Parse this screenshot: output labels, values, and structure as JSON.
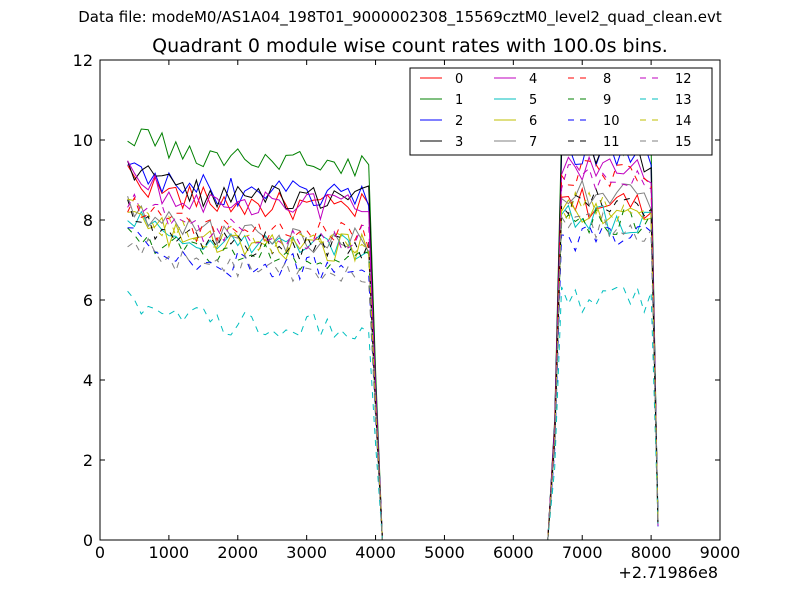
{
  "suptitle": "Data file: modeM0/AS1A04_198T01_9000002308_15569cztM0_level2_quad_clean.evt",
  "chart_data": {
    "type": "line",
    "title": "Quadrant 0 module wise count rates with 100.0s bins.",
    "xlabel": "",
    "ylabel": "",
    "x_offset_label": "+2.71986e8",
    "xlim": [
      0,
      9000
    ],
    "ylim": [
      0,
      12
    ],
    "xticks": [
      0,
      1000,
      2000,
      3000,
      4000,
      5000,
      6000,
      7000,
      8000,
      9000
    ],
    "yticks": [
      0,
      2,
      4,
      6,
      8,
      10,
      12
    ],
    "grid": false,
    "legend_position": "top-right",
    "legend_columns": 4,
    "x_segments": [
      [
        400,
        3900
      ],
      [
        4000,
        4300
      ],
      [
        4400,
        6500
      ],
      [
        6600,
        8100
      ]
    ],
    "x_step": 100,
    "series": [
      {
        "name": "0",
        "color": "#ff0000",
        "dash": "solid",
        "level1": 8.3,
        "level2": 8.4
      },
      {
        "name": "1",
        "color": "#008000",
        "dash": "solid",
        "level1": 9.4,
        "level2": 10.0
      },
      {
        "name": "2",
        "color": "#0000ff",
        "dash": "solid",
        "level1": 8.6,
        "level2": 9.7
      },
      {
        "name": "3",
        "color": "#000000",
        "dash": "solid",
        "level1": 8.5,
        "level2": 9.6
      },
      {
        "name": "4",
        "color": "#bf00bf",
        "dash": "solid",
        "level1": 8.3,
        "level2": 9.3
      },
      {
        "name": "5",
        "color": "#00bfbf",
        "dash": "solid",
        "level1": 7.3,
        "level2": 8.0
      },
      {
        "name": "6",
        "color": "#bfbf00",
        "dash": "solid",
        "level1": 7.3,
        "level2": 8.2
      },
      {
        "name": "7",
        "color": "#808080",
        "dash": "solid",
        "level1": 7.5,
        "level2": 8.6
      },
      {
        "name": "8",
        "color": "#ff0000",
        "dash": "dashed",
        "level1": 7.6,
        "level2": 9.1
      },
      {
        "name": "9",
        "color": "#008000",
        "dash": "dashed",
        "level1": 7.0,
        "level2": 7.9
      },
      {
        "name": "10",
        "color": "#0000ff",
        "dash": "dashed",
        "level1": 6.8,
        "level2": 7.5
      },
      {
        "name": "11",
        "color": "#000000",
        "dash": "dashed",
        "level1": 7.3,
        "level2": 8.4
      },
      {
        "name": "12",
        "color": "#bf00bf",
        "dash": "dashed",
        "level1": 7.6,
        "level2": 9.0
      },
      {
        "name": "13",
        "color": "#00bfbf",
        "dash": "dashed",
        "level1": 5.3,
        "level2": 6.0
      },
      {
        "name": "14",
        "color": "#bfbf00",
        "dash": "dashed",
        "level1": 7.4,
        "level2": 8.3
      },
      {
        "name": "15",
        "color": "#808080",
        "dash": "dashed",
        "level1": 6.7,
        "level2": 7.8
      }
    ]
  }
}
